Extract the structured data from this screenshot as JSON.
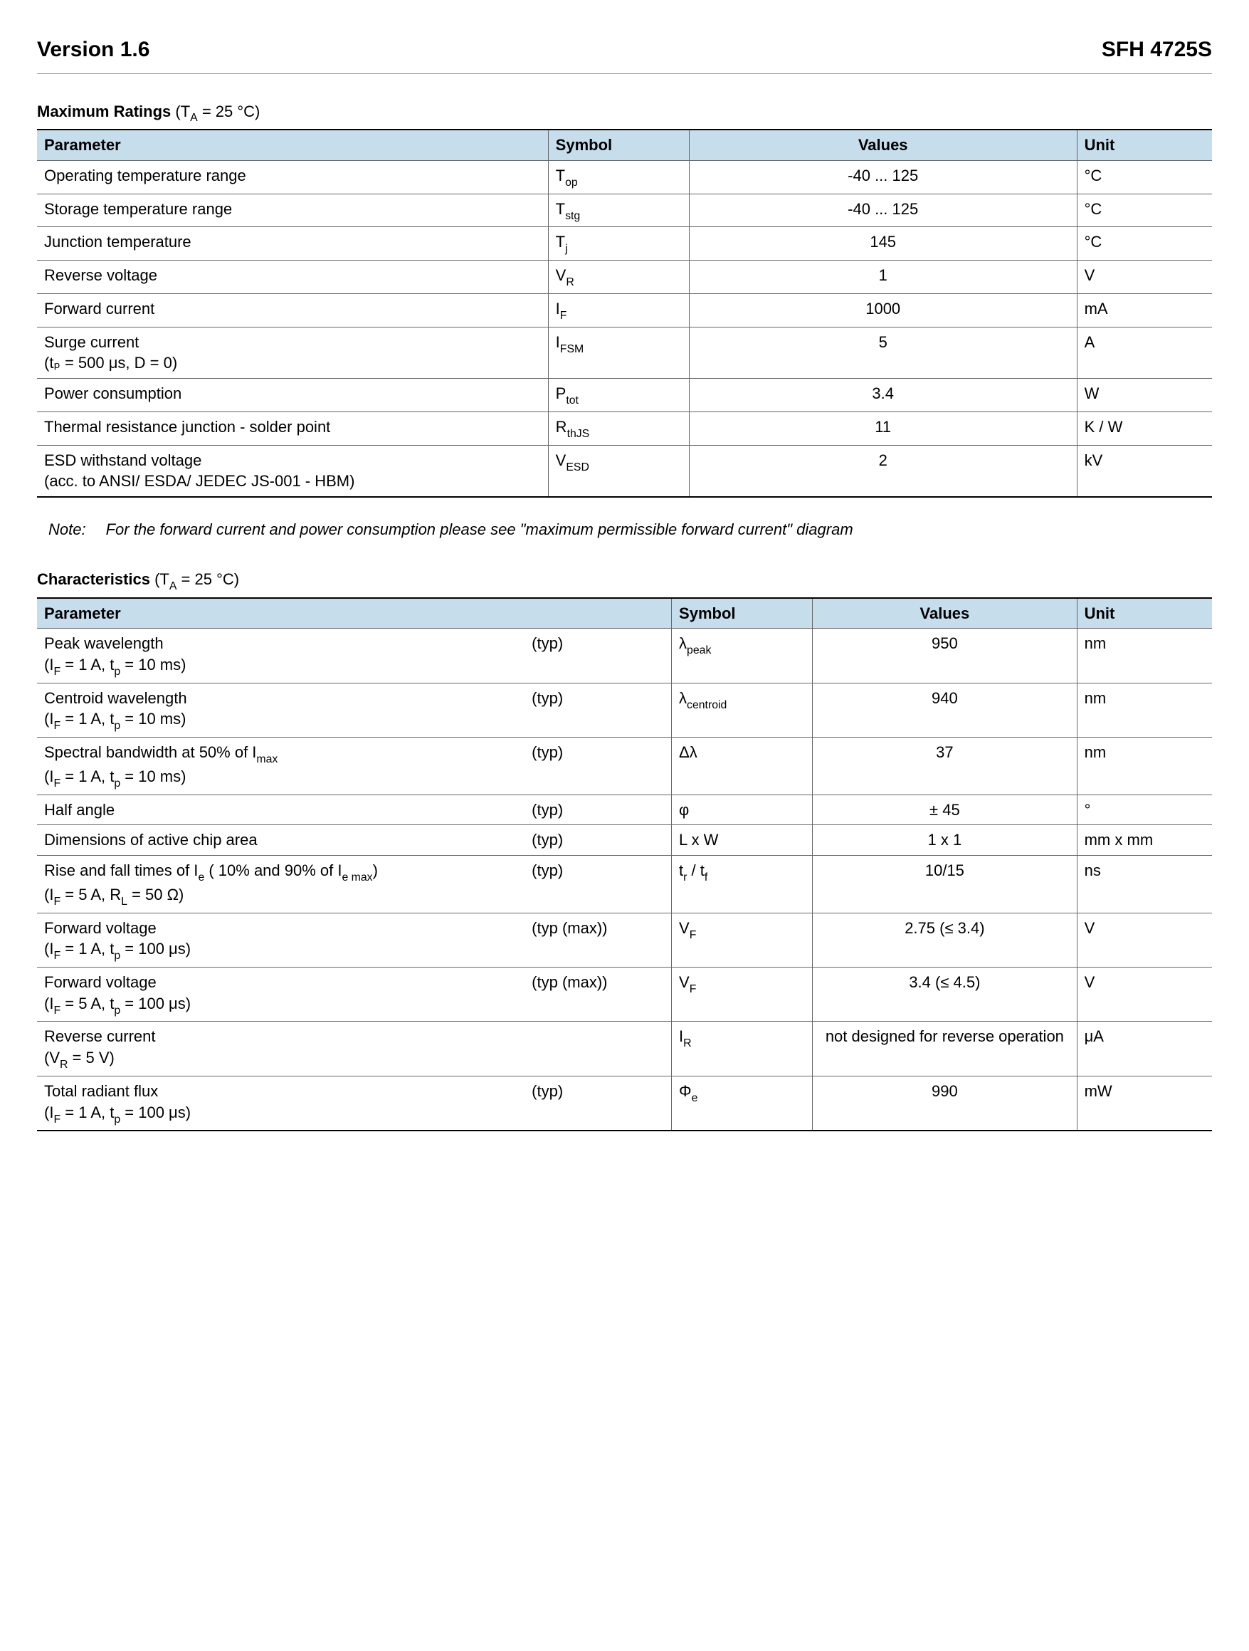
{
  "header": {
    "version": "Version 1.6",
    "part": "SFH 4725S"
  },
  "table1": {
    "title_bold": "Maximum Ratings",
    "title_cond": " (T",
    "title_cond_sub": "A",
    "title_cond_tail": " = 25 °C)",
    "headers": {
      "parameter": "Parameter",
      "symbol": "Symbol",
      "values": "Values",
      "unit": "Unit"
    },
    "rows": [
      {
        "param": "Operating temperature range",
        "cond": "",
        "sym": "T",
        "symsub": "op",
        "val": "-40  ...  125",
        "unit": "°C"
      },
      {
        "param": "Storage temperature range",
        "cond": "",
        "sym": "T",
        "symsub": "stg",
        "val": "-40  ...  125",
        "unit": "°C"
      },
      {
        "param": "Junction temperature",
        "cond": "",
        "sym": "T",
        "symsub": "j",
        "val": "145",
        "unit": "°C"
      },
      {
        "param": "Reverse voltage",
        "cond": "",
        "sym": "V",
        "symsub": "R",
        "val": "1",
        "unit": "V"
      },
      {
        "param": "Forward current",
        "cond": "",
        "sym": "I",
        "symsub": "F",
        "val": "1000",
        "unit": "mA"
      },
      {
        "param": "Surge current",
        "cond": "(tₚ = 500 μs, D = 0)",
        "sym": "I",
        "symsub": "FSM",
        "val": "5",
        "unit": "A"
      },
      {
        "param": "Power consumption",
        "cond": "",
        "sym": "P",
        "symsub": "tot",
        "val": "3.4",
        "unit": "W"
      },
      {
        "param": "Thermal resistance junction - solder point",
        "cond": "",
        "sym": "R",
        "symsub": "thJS",
        "val": "11",
        "unit": "K / W"
      },
      {
        "param": "ESD withstand voltage",
        "cond": "(acc. to ANSI/ ESDA/ JEDEC JS-001 - HBM)",
        "sym": "V",
        "symsub": "ESD",
        "val": "2",
        "unit": "kV"
      }
    ],
    "col_widths": [
      "43.5%",
      "12%",
      "33%",
      "11.5%"
    ]
  },
  "note": {
    "label": "Note:",
    "text": "For the forward current and power consumption please see \"maximum permissible forward current\" diagram"
  },
  "table2": {
    "title_bold": "Characteristics",
    "title_cond": " (T",
    "title_cond_sub": "A",
    "title_cond_tail": " = 25 °C)",
    "headers": {
      "parameter": "Parameter",
      "symbol": "Symbol",
      "values": "Values",
      "unit": "Unit"
    },
    "rows": [
      {
        "param": "Peak wavelength",
        "cond": "(I_F = 1 A, t_p = 10 ms)",
        "typ": "(typ)",
        "sym": "λ",
        "symsub": "peak",
        "val": "950",
        "unit": "nm"
      },
      {
        "param": "Centroid wavelength",
        "cond": "(I_F = 1 A, t_p = 10 ms)",
        "typ": "(typ)",
        "sym": "λ",
        "symsub": "centroid",
        "val": "940",
        "unit": "nm"
      },
      {
        "param": "Spectral bandwidth at 50% of I_max",
        "cond": "(I_F = 1 A, t_p = 10 ms)",
        "typ": "(typ)",
        "sym": "Δλ",
        "symsub": "",
        "val": "37",
        "unit": "nm"
      },
      {
        "param": "Half angle",
        "cond": "",
        "typ": "(typ)",
        "sym": "φ",
        "symsub": "",
        "val": "± 45",
        "unit": "°"
      },
      {
        "param": "Dimensions of active chip area",
        "cond": "",
        "typ": "(typ)",
        "sym": "L x W",
        "symsub": "",
        "val": "1 x 1",
        "unit": "mm x mm"
      },
      {
        "param": "Rise and fall times of I_e ( 10% and 90% of I_e max)",
        "cond": "(I_F = 5 A, R_L = 50 Ω)",
        "typ": "(typ)",
        "sym": "t_r / t_f",
        "symsub": "",
        "val": "10/15",
        "unit": "ns"
      },
      {
        "param": "Forward voltage",
        "cond": "(I_F = 1 A, t_p = 100 μs)",
        "typ": "(typ (max))",
        "sym": "V",
        "symsub": "F",
        "val": "2.75 (≤ 3.4)",
        "unit": "V"
      },
      {
        "param": "Forward voltage",
        "cond": "(I_F = 5 A, t_p = 100 μs)",
        "typ": "(typ (max))",
        "sym": "V",
        "symsub": "F",
        "val": "3.4 (≤ 4.5)",
        "unit": "V"
      },
      {
        "param": "Reverse current",
        "cond": "(V_R = 5 V)",
        "typ": "",
        "sym": "I",
        "symsub": "R",
        "val": "not designed for reverse operation",
        "unit": "μA"
      },
      {
        "param": "Total radiant flux",
        "cond": "(I_F = 1 A, t_p = 100 μs)",
        "typ": "(typ)",
        "sym": "Φ",
        "symsub": "e",
        "val": "990",
        "unit": "mW"
      }
    ],
    "col_widths": [
      "41.5%",
      "12.5%",
      "12%",
      "22.5%",
      "11.5%"
    ]
  },
  "colors": {
    "header_bg": "#c6ddeb",
    "border": "#666666",
    "outer_border": "#000000"
  }
}
